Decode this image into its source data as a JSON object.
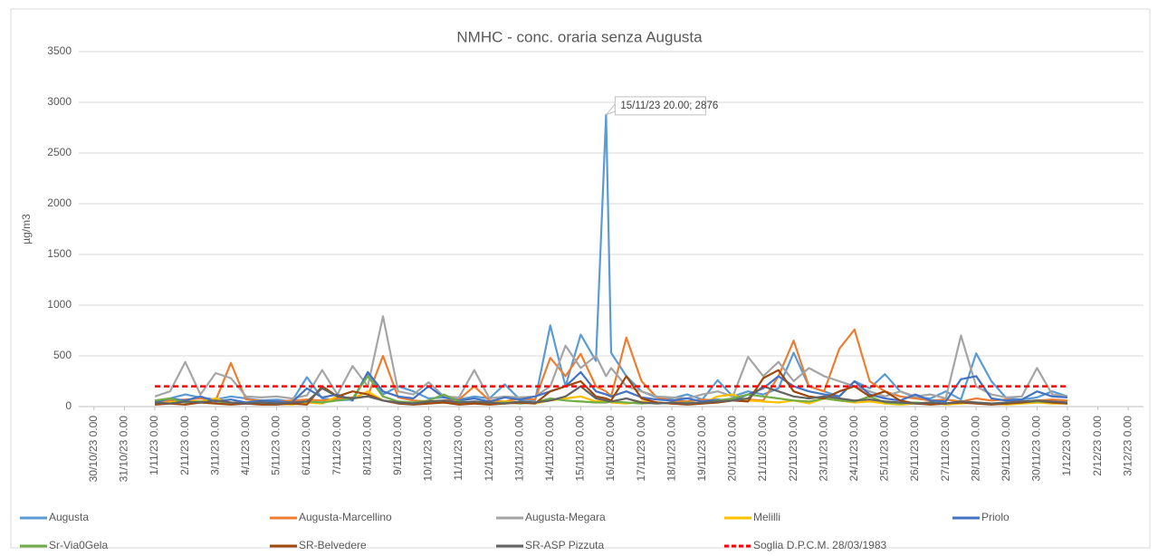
{
  "chart_data": {
    "type": "line",
    "title": "NMHC - conc. oraria senza Augusta",
    "y_label": "µg/m3",
    "annotation": "15/11/23 20.00; 2876",
    "x": [
      2,
      2.5,
      3,
      3.5,
      4,
      4.5,
      5,
      5.5,
      6,
      6.5,
      7,
      7.5,
      8,
      8.5,
      9,
      9.5,
      10,
      10.5,
      11,
      11.5,
      12,
      12.5,
      13,
      13.5,
      14,
      14.5,
      15,
      15.5,
      16,
      16.5,
      16.833,
      17,
      17.5,
      18,
      18.5,
      19,
      19.5,
      20,
      20.5,
      21,
      21.5,
      22,
      22.5,
      23,
      23.5,
      24,
      24.5,
      25,
      25.5,
      26,
      26.5,
      27,
      27.5,
      28,
      28.5,
      29,
      29.5,
      30,
      30.5,
      31,
      31.5,
      32
    ],
    "xlim": [
      -0.5,
      34.5
    ],
    "xticks": [
      {
        "value": 0,
        "label": "30/10/23 0.00"
      },
      {
        "value": 1,
        "label": "31/10/23 0.00"
      },
      {
        "value": 2,
        "label": "1/11/23 0.00"
      },
      {
        "value": 3,
        "label": "2/11/23 0.00"
      },
      {
        "value": 4,
        "label": "3/11/23 0.00"
      },
      {
        "value": 5,
        "label": "4/11/23 0.00"
      },
      {
        "value": 6,
        "label": "5/11/23 0.00"
      },
      {
        "value": 7,
        "label": "6/11/23 0.00"
      },
      {
        "value": 8,
        "label": "7/11/23 0.00"
      },
      {
        "value": 9,
        "label": "8/11/23 0.00"
      },
      {
        "value": 10,
        "label": "9/11/23 0.00"
      },
      {
        "value": 11,
        "label": "10/11/23 0.00"
      },
      {
        "value": 12,
        "label": "11/11/23 0.00"
      },
      {
        "value": 13,
        "label": "12/11/23 0.00"
      },
      {
        "value": 14,
        "label": "13/11/23 0.00"
      },
      {
        "value": 15,
        "label": "14/11/23 0.00"
      },
      {
        "value": 16,
        "label": "15/11/23 0.00"
      },
      {
        "value": 17,
        "label": "16/11/23 0.00"
      },
      {
        "value": 18,
        "label": "17/11/23 0.00"
      },
      {
        "value": 19,
        "label": "18/11/23 0.00"
      },
      {
        "value": 20,
        "label": "19/11/23 0.00"
      },
      {
        "value": 21,
        "label": "20/11/23 0.00"
      },
      {
        "value": 22,
        "label": "21/11/23 0.00"
      },
      {
        "value": 23,
        "label": "22/11/23 0.00"
      },
      {
        "value": 24,
        "label": "23/11/23 0.00"
      },
      {
        "value": 25,
        "label": "24/11/23 0.00"
      },
      {
        "value": 26,
        "label": "25/11/23 0.00"
      },
      {
        "value": 27,
        "label": "26/11/23 0.00"
      },
      {
        "value": 28,
        "label": "27/11/23 0.00"
      },
      {
        "value": 29,
        "label": "28/11/23 0.00"
      },
      {
        "value": 30,
        "label": "29/11/23 0.00"
      },
      {
        "value": 31,
        "label": "30/11/23 0.00"
      },
      {
        "value": 32,
        "label": "1/12/23 0.00"
      },
      {
        "value": 33,
        "label": "2/12/23 0.00"
      },
      {
        "value": 34,
        "label": "3/12/23 0.00"
      }
    ],
    "ylim": [
      0,
      3500
    ],
    "yticks": [
      0,
      500,
      1000,
      1500,
      2000,
      2500,
      3000,
      3500
    ],
    "grid": true,
    "legend": "bottom",
    "series": [
      {
        "name": "Augusta",
        "color": "#5b9bd5",
        "values": [
          60,
          80,
          120,
          90,
          70,
          100,
          80,
          60,
          70,
          50,
          290,
          80,
          60,
          70,
          320,
          120,
          200,
          150,
          80,
          90,
          70,
          100,
          80,
          220,
          70,
          60,
          800,
          200,
          710,
          450,
          2876,
          530,
          300,
          150,
          90,
          80,
          120,
          70,
          260,
          100,
          150,
          120,
          180,
          530,
          200,
          150,
          100,
          250,
          180,
          320,
          150,
          90,
          80,
          150,
          70,
          525,
          250,
          80,
          70,
          90,
          150,
          100
        ]
      },
      {
        "name": "Augusta-Marcellino",
        "color": "#ed7d31",
        "values": [
          50,
          60,
          70,
          80,
          60,
          430,
          70,
          60,
          50,
          60,
          70,
          60,
          80,
          90,
          100,
          500,
          90,
          60,
          50,
          60,
          70,
          200,
          60,
          50,
          80,
          70,
          480,
          300,
          520,
          200,
          150,
          100,
          680,
          250,
          90,
          60,
          50,
          70,
          60,
          80,
          70,
          60,
          300,
          650,
          200,
          150,
          570,
          760,
          250,
          150,
          100,
          80,
          60,
          70,
          50,
          80,
          60,
          70,
          50,
          60,
          70,
          60
        ]
      },
      {
        "name": "Augusta-Megara",
        "color": "#a5a5a5",
        "values": [
          100,
          150,
          440,
          120,
          330,
          280,
          100,
          90,
          100,
          80,
          110,
          360,
          120,
          400,
          200,
          890,
          150,
          120,
          240,
          100,
          90,
          360,
          80,
          100,
          90,
          100,
          200,
          600,
          380,
          500,
          300,
          380,
          200,
          150,
          100,
          90,
          80,
          120,
          150,
          100,
          490,
          300,
          440,
          250,
          380,
          300,
          250,
          200,
          150,
          100,
          150,
          100,
          120,
          80,
          700,
          200,
          120,
          90,
          100,
          380,
          120,
          100
        ]
      },
      {
        "name": "Melilli",
        "color": "#ffc000",
        "values": [
          30,
          40,
          60,
          50,
          80,
          40,
          30,
          40,
          30,
          20,
          40,
          30,
          100,
          80,
          150,
          60,
          40,
          30,
          50,
          40,
          30,
          40,
          30,
          50,
          40,
          30,
          60,
          80,
          100,
          50,
          60,
          40,
          30,
          50,
          40,
          30,
          40,
          30,
          100,
          120,
          60,
          50,
          40,
          60,
          30,
          80,
          60,
          40,
          50,
          30,
          20,
          30,
          40,
          20,
          30,
          40,
          30,
          20,
          30,
          40,
          30,
          30
        ]
      },
      {
        "name": "Priolo",
        "color": "#4472c4",
        "values": [
          40,
          80,
          60,
          100,
          50,
          70,
          40,
          60,
          50,
          40,
          180,
          90,
          120,
          60,
          340,
          150,
          100,
          80,
          200,
          90,
          60,
          80,
          50,
          90,
          70,
          100,
          150,
          200,
          340,
          150,
          120,
          100,
          150,
          90,
          70,
          60,
          80,
          50,
          70,
          60,
          120,
          180,
          300,
          200,
          150,
          120,
          100,
          250,
          120,
          80,
          60,
          120,
          60,
          50,
          270,
          300,
          80,
          60,
          70,
          150,
          100,
          90
        ]
      },
      {
        "name": "Sr-Via0Gela",
        "color": "#70ad47",
        "values": [
          60,
          80,
          40,
          50,
          30,
          40,
          30,
          40,
          30,
          30,
          50,
          40,
          60,
          80,
          300,
          100,
          50,
          40,
          60,
          120,
          50,
          40,
          30,
          40,
          30,
          40,
          80,
          60,
          50,
          40,
          40,
          50,
          40,
          30,
          40,
          30,
          40,
          30,
          60,
          80,
          120,
          100,
          80,
          60,
          50,
          80,
          60,
          50,
          100,
          40,
          30,
          40,
          30,
          30,
          50,
          40,
          30,
          30,
          40,
          50,
          40,
          40
        ]
      },
      {
        "name": "SR-Belvedere",
        "color": "#9e480e",
        "values": [
          20,
          30,
          20,
          40,
          30,
          20,
          30,
          20,
          20,
          30,
          20,
          200,
          100,
          150,
          120,
          60,
          30,
          20,
          30,
          40,
          20,
          30,
          20,
          30,
          40,
          30,
          150,
          200,
          250,
          100,
          80,
          60,
          300,
          80,
          40,
          30,
          20,
          30,
          40,
          60,
          50,
          280,
          360,
          150,
          100,
          80,
          150,
          200,
          100,
          150,
          60,
          30,
          20,
          30,
          40,
          30,
          20,
          30,
          40,
          60,
          40,
          30
        ]
      },
      {
        "name": "SR-ASP Pizzuta",
        "color": "#636363",
        "values": [
          40,
          30,
          50,
          40,
          60,
          40,
          30,
          40,
          30,
          40,
          50,
          180,
          100,
          80,
          100,
          60,
          40,
          30,
          50,
          60,
          40,
          50,
          40,
          30,
          50,
          40,
          60,
          100,
          200,
          80,
          60,
          50,
          80,
          40,
          30,
          40,
          30,
          40,
          50,
          60,
          80,
          200,
          150,
          100,
          80,
          100,
          80,
          60,
          70,
          50,
          40,
          30,
          40,
          30,
          50,
          40,
          30,
          40,
          50,
          60,
          50,
          40
        ]
      },
      {
        "name": "Soglia D.P.C.M. 28/03/1983",
        "color": "#ff0000",
        "dashed": true,
        "x": [
          2,
          32
        ],
        "values": [
          200,
          200
        ]
      }
    ]
  }
}
